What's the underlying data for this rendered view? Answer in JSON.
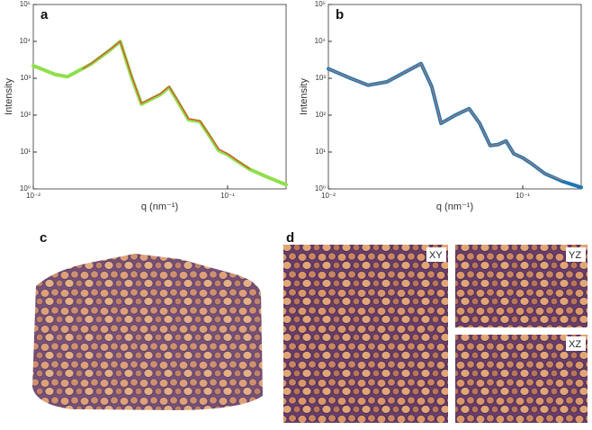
{
  "chart_data": [
    {
      "type": "line",
      "panel_label": "a",
      "xlabel": "q (nm⁻¹)",
      "ylabel": "Intensity",
      "xscale": "log",
      "yscale": "log",
      "xlim": [
        0.01,
        0.2
      ],
      "ylim": [
        1,
        100000
      ],
      "xticks": [
        {
          "value": 0.01,
          "label": "10⁻²"
        },
        {
          "value": 0.1,
          "label": "10⁻¹"
        }
      ],
      "yticks": [
        {
          "value": 1,
          "label": "10⁰"
        },
        {
          "value": 10,
          "label": "10¹"
        },
        {
          "value": 100,
          "label": "10²"
        },
        {
          "value": 1000,
          "label": "10³"
        },
        {
          "value": 10000,
          "label": "10⁴"
        },
        {
          "value": 100000,
          "label": "10⁵"
        }
      ],
      "series": [
        {
          "color": "#8ee04a",
          "width": 4,
          "x": [
            0.01,
            0.013,
            0.015,
            0.02,
            0.025,
            0.028,
            0.032,
            0.036,
            0.045,
            0.05,
            0.055,
            0.063,
            0.072,
            0.08,
            0.09,
            0.1,
            0.11,
            0.13,
            0.16,
            0.2
          ],
          "values": [
            2200,
            1260,
            1100,
            2500,
            6000,
            10000,
            1100,
            200,
            360,
            570,
            250,
            75,
            67,
            29,
            11,
            8.5,
            6,
            3.4,
            2.1,
            1.3
          ]
        },
        {
          "color": "#e0483a",
          "width": 1.3,
          "x": [
            0.018,
            0.02,
            0.025,
            0.028,
            0.032,
            0.036,
            0.045,
            0.05,
            0.055,
            0.063,
            0.072,
            0.08,
            0.09,
            0.1,
            0.11,
            0.13
          ],
          "values": [
            1800,
            2600,
            6200,
            10000,
            1200,
            210,
            380,
            600,
            270,
            80,
            70,
            31,
            12,
            9,
            6.3,
            3.5
          ]
        }
      ]
    },
    {
      "type": "line",
      "panel_label": "b",
      "xlabel": "q (nm⁻¹)",
      "ylabel": "Intensity",
      "xscale": "log",
      "yscale": "log",
      "xlim": [
        0.01,
        0.2
      ],
      "ylim": [
        1,
        100000
      ],
      "xticks": [
        {
          "value": 0.01,
          "label": "10⁻²"
        },
        {
          "value": 0.1,
          "label": "10⁻¹"
        }
      ],
      "yticks": [
        {
          "value": 1,
          "label": "10⁰"
        },
        {
          "value": 10,
          "label": "10¹"
        },
        {
          "value": 100,
          "label": "10²"
        },
        {
          "value": 1000,
          "label": "10³"
        },
        {
          "value": 10000,
          "label": "10⁴"
        },
        {
          "value": 100000,
          "label": "10⁵"
        }
      ],
      "series": [
        {
          "color": "#1f77b4",
          "width": 4,
          "x": [
            0.01,
            0.013,
            0.016,
            0.02,
            0.025,
            0.03,
            0.034,
            0.038,
            0.045,
            0.053,
            0.06,
            0.068,
            0.075,
            0.082,
            0.09,
            0.1,
            0.11,
            0.13,
            0.16,
            0.2
          ],
          "values": [
            1800,
            1000,
            650,
            800,
            1500,
            2500,
            600,
            60,
            100,
            150,
            60,
            15,
            16,
            20,
            9,
            7,
            5,
            2.6,
            1.6,
            1.1
          ]
        },
        {
          "color": "#b07a70",
          "width": 1.2,
          "x": [
            0.01,
            0.013,
            0.016,
            0.02,
            0.025,
            0.03,
            0.034,
            0.038,
            0.045,
            0.053,
            0.06,
            0.068,
            0.075,
            0.082,
            0.09,
            0.1,
            0.11,
            0.13,
            0.16
          ],
          "values": [
            1800,
            1000,
            650,
            800,
            1500,
            2500,
            600,
            60,
            100,
            150,
            60,
            15,
            16,
            20,
            9,
            7,
            5,
            2.6,
            1.7
          ]
        }
      ]
    }
  ],
  "image_panels": [
    {
      "label": "c"
    },
    {
      "label": "d",
      "views": [
        "XY",
        "YZ",
        "XZ"
      ]
    }
  ]
}
